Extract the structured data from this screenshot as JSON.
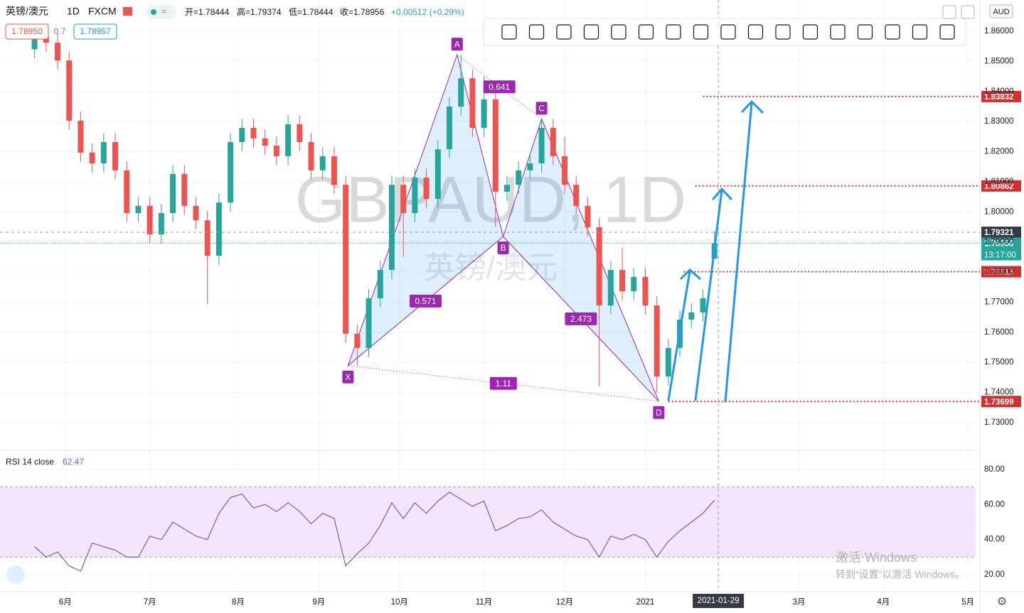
{
  "header": {
    "symbol": "英镑/澳元",
    "interval": "1D",
    "source": "FXCM",
    "open": "开=1.78444",
    "high": "高=1.79374",
    "low": "低=1.78444",
    "close": "收=1.78956",
    "change": "+0.00512 (+0.29%)",
    "bid": "1.78950",
    "spread": "0.7",
    "ask": "1.78957",
    "currency": "AUD"
  },
  "watermark": {
    "symbol": "GBPAUD, 1D",
    "name": "英镑/澳元"
  },
  "windows": {
    "title": "激活 Windows",
    "hint": "转到“设置”以激活 Windows。"
  },
  "chart_data": {
    "type": "candlestick",
    "up_color": "#26a69a",
    "down_color": "#ef5350",
    "xlim": [
      0,
      254
    ],
    "ylim": [
      1.721,
      1.8704
    ],
    "xticks": [
      {
        "value": 17,
        "label": "6月"
      },
      {
        "value": 39,
        "label": "7月"
      },
      {
        "value": 62,
        "label": "8月"
      },
      {
        "value": 83,
        "label": "9月"
      },
      {
        "value": 104,
        "label": "10月"
      },
      {
        "value": 126,
        "label": "11月"
      },
      {
        "value": 147,
        "label": "12月"
      },
      {
        "value": 168,
        "label": "2021"
      },
      {
        "value": 208,
        "label": "3月"
      },
      {
        "value": 230,
        "label": "4月"
      },
      {
        "value": 252,
        "label": "5月"
      }
    ],
    "cursor": {
      "x": {
        "value": 187,
        "label": "2021-01-29"
      },
      "y": 1.79321
    },
    "yticks": [
      {
        "value": 1.86,
        "label": "1.86000"
      },
      {
        "value": 1.85,
        "label": "1.85000"
      },
      {
        "value": 1.84,
        "label": "1.84000"
      },
      {
        "value": 1.83,
        "label": "1.83000"
      },
      {
        "value": 1.82,
        "label": "1.82000"
      },
      {
        "value": 1.81,
        "label": "1.81000"
      },
      {
        "value": 1.8,
        "label": "1.80000"
      },
      {
        "value": 1.79,
        "label": "1.79000"
      },
      {
        "value": 1.78,
        "label": "1.78000"
      },
      {
        "value": 1.77,
        "label": "1.77000"
      },
      {
        "value": 1.76,
        "label": "1.76000"
      },
      {
        "value": 1.75,
        "label": "1.75000"
      },
      {
        "value": 1.74,
        "label": "1.74000"
      },
      {
        "value": 1.73,
        "label": "1.73000"
      }
    ],
    "x": [
      9,
      12,
      15,
      18,
      21,
      24,
      27,
      30,
      33,
      36,
      39,
      42,
      45,
      48,
      51,
      54,
      57,
      60,
      63,
      66,
      69,
      72,
      75,
      78,
      81,
      84,
      87,
      90,
      93,
      96,
      99,
      102,
      105,
      108,
      111,
      114,
      117,
      120,
      123,
      126,
      129,
      132,
      135,
      138,
      141,
      144,
      147,
      150,
      153,
      156,
      159,
      162,
      165,
      168,
      171,
      174,
      177,
      180,
      183,
      186
    ],
    "candles": [
      [
        1.854,
        1.8616,
        1.851,
        1.8586
      ],
      [
        1.8586,
        1.8616,
        1.8532,
        1.8562
      ],
      [
        1.8562,
        1.8592,
        1.8473,
        1.8503
      ],
      [
        1.8503,
        1.8533,
        1.8273,
        1.8303
      ],
      [
        1.8303,
        1.8333,
        1.8167,
        1.8197
      ],
      [
        1.8197,
        1.8227,
        1.8131,
        1.8161
      ],
      [
        1.8161,
        1.8262,
        1.8131,
        1.8232
      ],
      [
        1.8232,
        1.8262,
        1.8108,
        1.8138
      ],
      [
        1.8138,
        1.8168,
        1.7966,
        1.7996
      ],
      [
        1.7996,
        1.805,
        1.7966,
        1.802
      ],
      [
        1.802,
        1.805,
        1.7895,
        1.7925
      ],
      [
        1.7925,
        1.8026,
        1.7895,
        1.7996
      ],
      [
        1.7996,
        1.8156,
        1.7966,
        1.8126
      ],
      [
        1.8126,
        1.8156,
        1.799,
        1.802
      ],
      [
        1.802,
        1.805,
        1.7942,
        1.7972
      ],
      [
        1.7972,
        1.8002,
        1.7695,
        1.7854
      ],
      [
        1.7854,
        1.8061,
        1.7824,
        1.8031
      ],
      [
        1.8031,
        1.8262,
        1.8001,
        1.8232
      ],
      [
        1.8232,
        1.8309,
        1.8202,
        1.8279
      ],
      [
        1.8279,
        1.8309,
        1.8214,
        1.8244
      ],
      [
        1.8244,
        1.8274,
        1.819,
        1.822
      ],
      [
        1.822,
        1.825,
        1.8155,
        1.8185
      ],
      [
        1.8185,
        1.8321,
        1.8155,
        1.8291
      ],
      [
        1.8291,
        1.8321,
        1.8202,
        1.8232
      ],
      [
        1.8232,
        1.8262,
        1.8108,
        1.8138
      ],
      [
        1.8138,
        1.8215,
        1.8108,
        1.8185
      ],
      [
        1.8185,
        1.8215,
        1.806,
        1.809
      ],
      [
        1.809,
        1.812,
        1.7565,
        1.7595
      ],
      [
        1.7595,
        1.7625,
        1.7489,
        1.7548
      ],
      [
        1.7548,
        1.7743,
        1.7518,
        1.7713
      ],
      [
        1.7713,
        1.7837,
        1.7683,
        1.7807
      ],
      [
        1.7807,
        1.812,
        1.7777,
        1.809
      ],
      [
        1.809,
        1.812,
        1.785,
        1.7996
      ],
      [
        1.7996,
        1.8144,
        1.7966,
        1.8114
      ],
      [
        1.8114,
        1.8144,
        1.8013,
        1.8043
      ],
      [
        1.8043,
        1.8238,
        1.8013,
        1.8208
      ],
      [
        1.8208,
        1.838,
        1.8178,
        1.835
      ],
      [
        1.835,
        1.8522,
        1.832,
        1.8444
      ],
      [
        1.8444,
        1.8474,
        1.8249,
        1.8279
      ],
      [
        1.8279,
        1.845,
        1.8249,
        1.8374
      ],
      [
        1.8374,
        1.8404,
        1.795,
        1.8067
      ],
      [
        1.8067,
        1.812,
        1.8037,
        1.809
      ],
      [
        1.809,
        1.8168,
        1.806,
        1.8138
      ],
      [
        1.8138,
        1.8191,
        1.8108,
        1.8161
      ],
      [
        1.8161,
        1.8309,
        1.8131,
        1.8279
      ],
      [
        1.8279,
        1.8309,
        1.8155,
        1.8185
      ],
      [
        1.8185,
        1.825,
        1.806,
        1.809
      ],
      [
        1.809,
        1.812,
        1.799,
        1.802
      ],
      [
        1.802,
        1.805,
        1.7919,
        1.7949
      ],
      [
        1.7949,
        1.7979,
        1.742,
        1.7689
      ],
      [
        1.7689,
        1.7837,
        1.7659,
        1.7807
      ],
      [
        1.7807,
        1.788,
        1.7706,
        1.7736
      ],
      [
        1.7736,
        1.7814,
        1.7706,
        1.7784
      ],
      [
        1.7784,
        1.7814,
        1.7659,
        1.7689
      ],
      [
        1.7689,
        1.7719,
        1.74,
        1.7453
      ],
      [
        1.7453,
        1.7578,
        1.7423,
        1.7548
      ],
      [
        1.7548,
        1.7672,
        1.7518,
        1.7642
      ],
      [
        1.7642,
        1.7696,
        1.7612,
        1.7666
      ],
      [
        1.7666,
        1.7743,
        1.7636,
        1.7713
      ],
      [
        1.78444,
        1.79374,
        1.78444,
        1.78956
      ]
    ],
    "levels": [
      {
        "value": 1.83832,
        "color": "#d32f2f",
        "from": 183
      },
      {
        "value": 1.80862,
        "color": "#d32f2f",
        "from": 181
      },
      {
        "value": 1.78013,
        "color": "#d32f2f",
        "from": 178
      },
      {
        "value": 1.73699,
        "color": "#d32f2f",
        "from": 174
      }
    ],
    "last_price": {
      "value": 1.78956,
      "countdown": "13:17:00",
      "color": "#26a69a"
    },
    "pattern": {
      "points": [
        {
          "label": "X",
          "x": 90.6,
          "y": 1.7489
        },
        {
          "label": "A",
          "x": 119,
          "y": 1.8522
        },
        {
          "label": "B",
          "x": 131,
          "y": 1.7918
        },
        {
          "label": "C",
          "x": 141,
          "y": 1.8309
        },
        {
          "label": "D",
          "x": 171.5,
          "y": 1.7371
        }
      ],
      "ratios": [
        {
          "label": "0.641",
          "from": 1,
          "to": 3
        },
        {
          "label": "0.571",
          "from": 0,
          "to": 2
        },
        {
          "label": "2.473",
          "from": 2,
          "to": 4
        },
        {
          "label": "1.11",
          "from": 0,
          "to": 4
        }
      ]
    },
    "rsi": {
      "name": "RSI 14 close",
      "last": 62.47,
      "color": "#7e57c2",
      "ylim": [
        10.3,
        90.5
      ],
      "band": [
        30,
        70
      ],
      "yticks": [
        {
          "value": 80,
          "label": "80.00"
        },
        {
          "value": 60,
          "label": "60.00"
        },
        {
          "value": 40,
          "label": "40.00"
        },
        {
          "value": 20,
          "label": "20.00"
        }
      ],
      "values": [
        36,
        30,
        33,
        25,
        22,
        38,
        36,
        34,
        30,
        30,
        42,
        40,
        50,
        46,
        42,
        40,
        55,
        64,
        66,
        58,
        60,
        56,
        61,
        56,
        49,
        55,
        52,
        25,
        32,
        38,
        48,
        61,
        52,
        61,
        55,
        62,
        67,
        63,
        59,
        62,
        45,
        48,
        52,
        53,
        57,
        50,
        46,
        42,
        40,
        30,
        42,
        40,
        43,
        40,
        30,
        39,
        45,
        50,
        55,
        62.47
      ]
    }
  }
}
